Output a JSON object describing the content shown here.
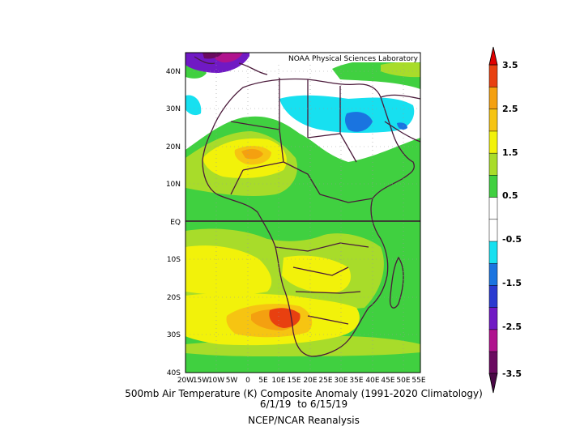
{
  "map": {
    "credit": "NOAA Physical Sciences Laboratory",
    "lat_labels": [
      "40N",
      "30N",
      "20N",
      "10N",
      "EQ",
      "10S",
      "20S",
      "30S",
      "40S"
    ],
    "lon_labels": [
      "20W",
      "15W",
      "10W",
      "5W",
      "0",
      "5E",
      "10E",
      "15E",
      "20E",
      "25E",
      "30E",
      "35E",
      "40E",
      "45E",
      "50E",
      "55E"
    ],
    "colors": {
      "land_border": "#4a1a3a",
      "equator_line": "#3a1030",
      "grid_dot": "#999999"
    }
  },
  "colorbar": {
    "labels": [
      "3.5",
      "2.5",
      "1.5",
      "0.5",
      "-0.5",
      "-1.5",
      "-2.5",
      "-3.5"
    ],
    "colors": [
      "#6a0a60",
      "#b0128e",
      "#7019c4",
      "#2a3ad0",
      "#1a74e0",
      "#17e0f0",
      "#ffffff",
      "#ffffff",
      "#40d040",
      "#a8dc2a",
      "#f2f20a",
      "#f6c412",
      "#f4a010",
      "#e84010"
    ]
  },
  "caption": {
    "line1": "500mb Air Temperature (K) Composite Anomaly (1991-2020 Climatology)",
    "line2": "6/1/19  to 6/15/19",
    "line3": "NCEP/NCAR Reanalysis"
  }
}
